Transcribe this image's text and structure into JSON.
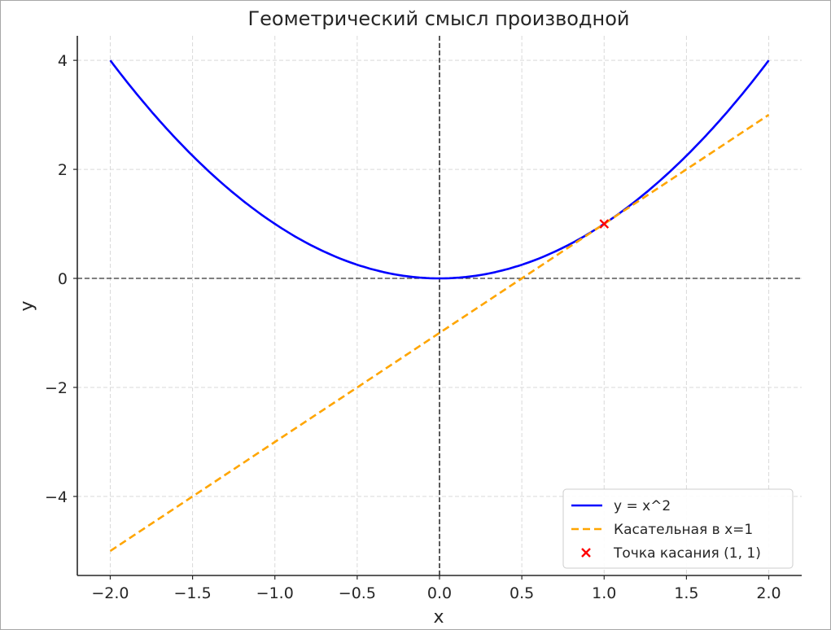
{
  "chart_data": {
    "type": "line",
    "title": "Геометрический смысл производной",
    "xlabel": "x",
    "ylabel": "y",
    "xlim": [
      -2.2,
      2.2
    ],
    "ylim": [
      -5.45,
      4.45
    ],
    "grid": true,
    "legend_position": "bottom-right",
    "x_ticks": [
      -2.0,
      -1.5,
      -1.0,
      -0.5,
      0.0,
      0.5,
      1.0,
      1.5,
      2.0
    ],
    "x_tick_labels": [
      "−2.0",
      "−1.5",
      "−1.0",
      "−0.5",
      "0.0",
      "0.5",
      "1.0",
      "1.5",
      "2.0"
    ],
    "y_ticks": [
      -4,
      -2,
      0,
      2,
      4
    ],
    "y_tick_labels": [
      "−4",
      "−2",
      "0",
      "2",
      "4"
    ],
    "reference_lines": [
      {
        "orientation": "horizontal",
        "value": 0,
        "color": "#333333",
        "style": "dashed"
      },
      {
        "orientation": "vertical",
        "value": 0,
        "color": "#000000",
        "style": "dashed"
      }
    ],
    "series": [
      {
        "name": "y = x^2",
        "kind": "line",
        "style": "solid",
        "color": "#0000ff",
        "x": [
          -2.0,
          -1.8,
          -1.6,
          -1.4,
          -1.2,
          -1.0,
          -0.8,
          -0.6,
          -0.4,
          -0.2,
          0.0,
          0.2,
          0.4,
          0.6,
          0.8,
          1.0,
          1.2,
          1.4,
          1.6,
          1.8,
          2.0
        ],
        "y": [
          4.0,
          3.24,
          2.56,
          1.96,
          1.44,
          1.0,
          0.64,
          0.36,
          0.16,
          0.04,
          0.0,
          0.04,
          0.16,
          0.36,
          0.64,
          1.0,
          1.44,
          1.96,
          2.56,
          3.24,
          4.0
        ]
      },
      {
        "name": "Касательная в x=1",
        "kind": "line",
        "style": "dashed",
        "color": "#ffa500",
        "x": [
          -2.0,
          2.0
        ],
        "y": [
          -5.0,
          3.0
        ]
      },
      {
        "name": "Точка касания (1, 1)",
        "kind": "scatter",
        "marker": "x",
        "color": "#ff0000",
        "x": [
          1.0
        ],
        "y": [
          1.0
        ]
      }
    ]
  }
}
